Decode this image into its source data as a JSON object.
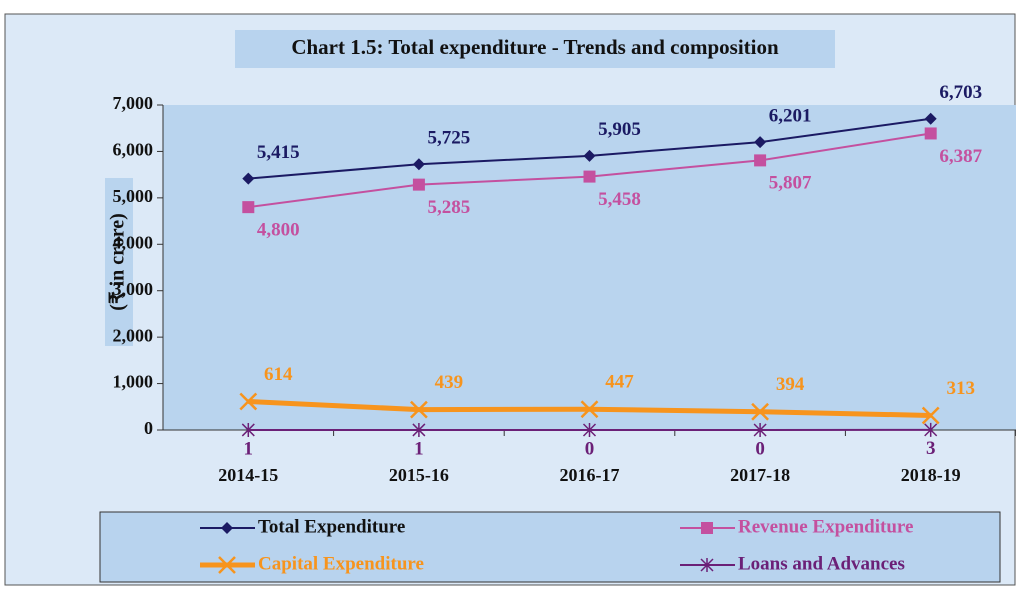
{
  "chart_data": {
    "type": "line",
    "title": "Chart 1.5: Total expenditure - Trends and composition",
    "y_label": "(₹ in crore)",
    "categories": [
      "2014-15",
      "2015-16",
      "2016-17",
      "2017-18",
      "2018-19"
    ],
    "series": [
      {
        "name": "Total Expenditure",
        "color": "#1b1a63",
        "marker": "diamond",
        "values": [
          5415,
          5725,
          5905,
          6201,
          6703
        ],
        "value_labels": [
          "5,415",
          "5,725",
          "5,905",
          "6,201",
          "6,703"
        ]
      },
      {
        "name": "Revenue Expenditure",
        "color": "#c4509f",
        "marker": "square",
        "values": [
          4800,
          5285,
          5458,
          5807,
          6387
        ],
        "value_labels": [
          "4,800",
          "5,285",
          "5,458",
          "5,807",
          "6,387"
        ]
      },
      {
        "name": "Capital Expenditure",
        "color": "#f7941d",
        "marker": "x",
        "values": [
          614,
          439,
          447,
          394,
          313
        ]
      },
      {
        "name": "Loans and Advances",
        "color": "#6b2077",
        "marker": "star",
        "values": [
          1,
          1,
          0,
          0,
          3
        ]
      }
    ],
    "ylim": [
      0,
      7000
    ],
    "yticks": [
      0,
      {
        "value": 1000,
        "label": "1,000"
      },
      {
        "value": 2000,
        "label": "2,000"
      },
      {
        "value": 3000,
        "label": "3,000"
      },
      {
        "value": 4000,
        "label": "4,000"
      },
      {
        "value": 5000,
        "label": "5,000"
      },
      {
        "value": 6000,
        "label": "6,000"
      },
      {
        "value": 7000,
        "label": "7,000"
      }
    ],
    "grid": false,
    "legend": "bottom"
  }
}
